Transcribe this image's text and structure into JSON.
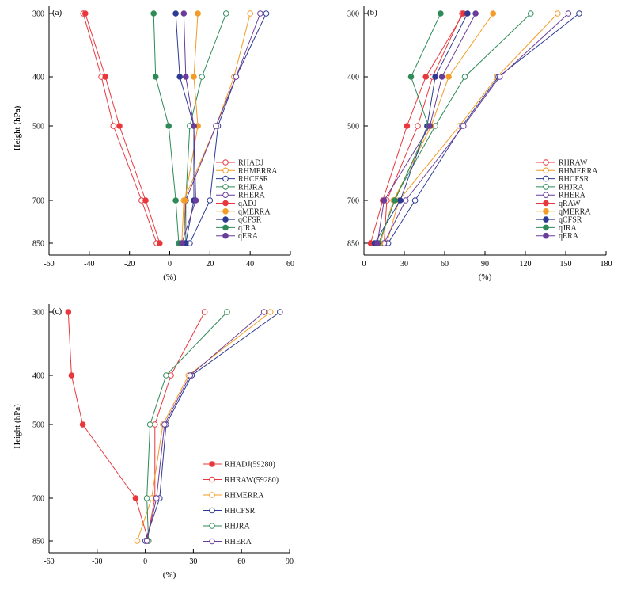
{
  "figure": {
    "y_axis_title": "Height (hPa)",
    "x_axis_title": "(%)"
  },
  "chart_data": [
    {
      "type": "line",
      "panel_label": "(a)",
      "title": "",
      "xlabel": "(%)",
      "ylabel": "Height (hPa)",
      "xlim": [
        -60,
        60
      ],
      "xticks": [
        -60,
        -40,
        -20,
        0,
        20,
        40,
        60
      ],
      "y_levels": [
        300,
        400,
        500,
        700,
        850
      ],
      "legend_position": "right",
      "series": [
        {
          "name": "RHADJ",
          "color": "#e8383d",
          "marker": "open",
          "values": [
            -43,
            -34,
            -28,
            -14,
            -6.5
          ]
        },
        {
          "name": "RHMERRA",
          "color": "#f39c27",
          "marker": "open",
          "values": [
            40,
            32,
            23,
            7,
            6
          ]
        },
        {
          "name": "RHCFSR",
          "color": "#2e3a92",
          "marker": "open",
          "values": [
            48,
            33,
            24,
            20,
            10
          ]
        },
        {
          "name": "RHJRA",
          "color": "#2e8b57",
          "marker": "open",
          "values": [
            28,
            16,
            10,
            8,
            8
          ]
        },
        {
          "name": "RHERA",
          "color": "#6a3d9a",
          "marker": "open",
          "values": [
            45,
            33,
            23,
            8,
            7
          ]
        },
        {
          "name": "qADJ",
          "color": "#e8383d",
          "marker": "filled",
          "values": [
            -42,
            -32,
            -25,
            -12,
            -5
          ]
        },
        {
          "name": "qMERRA",
          "color": "#f39c27",
          "marker": "filled",
          "values": [
            14,
            12,
            14,
            7.5,
            7
          ]
        },
        {
          "name": "qCFSR",
          "color": "#2e3a92",
          "marker": "filled",
          "values": [
            3,
            5,
            12,
            12,
            8
          ]
        },
        {
          "name": "qJRA",
          "color": "#2e8b57",
          "marker": "filled",
          "values": [
            -8,
            -7,
            -0.5,
            3,
            4.5
          ]
        },
        {
          "name": "qERA",
          "color": "#6a3d9a",
          "marker": "filled",
          "values": [
            7,
            8,
            12,
            13,
            6
          ]
        }
      ]
    },
    {
      "type": "line",
      "panel_label": "(b)",
      "title": "",
      "xlabel": "(%)",
      "ylabel": "Height (hPa)",
      "xlim": [
        0,
        180
      ],
      "xticks": [
        0,
        30,
        60,
        90,
        120,
        150,
        180
      ],
      "y_levels": [
        300,
        400,
        500,
        700,
        850
      ],
      "legend_position": "bottom-right",
      "series": [
        {
          "name": "RHRAW",
          "color": "#e8383d",
          "marker": "open",
          "values": [
            73,
            51,
            40,
            17,
            15
          ]
        },
        {
          "name": "RHMERRA",
          "color": "#f39c27",
          "marker": "open",
          "values": [
            144,
            99,
            71,
            26,
            17
          ]
        },
        {
          "name": "RHCFSR",
          "color": "#2e3a92",
          "marker": "open",
          "values": [
            160,
            100,
            73,
            38,
            18
          ]
        },
        {
          "name": "RHJRA",
          "color": "#2e8b57",
          "marker": "open",
          "values": [
            124,
            75,
            53,
            22,
            12
          ]
        },
        {
          "name": "RHERA",
          "color": "#6a3d9a",
          "marker": "open",
          "values": [
            152,
            101,
            74,
            31,
            15
          ]
        },
        {
          "name": "qRAW",
          "color": "#e8383d",
          "marker": "filled",
          "values": [
            74,
            46,
            32,
            14,
            5
          ]
        },
        {
          "name": "qMERRA",
          "color": "#f39c27",
          "marker": "filled",
          "values": [
            96,
            63,
            50,
            22,
            12
          ]
        },
        {
          "name": "qCFSR",
          "color": "#2e3a92",
          "marker": "filled",
          "values": [
            77,
            53,
            47,
            27,
            8
          ]
        },
        {
          "name": "qJRA",
          "color": "#2e8b57",
          "marker": "filled",
          "values": [
            57,
            35,
            48,
            23,
            11
          ]
        },
        {
          "name": "qERA",
          "color": "#6a3d9a",
          "marker": "filled",
          "values": [
            83,
            58,
            49,
            15,
            10
          ]
        }
      ]
    },
    {
      "type": "line",
      "panel_label": "(c)",
      "title": "",
      "xlabel": "(%)",
      "ylabel": "Height (hPa)",
      "xlim": [
        -60,
        90
      ],
      "xticks": [
        -60,
        -30,
        0,
        30,
        60,
        90
      ],
      "y_levels": [
        300,
        400,
        500,
        700,
        850
      ],
      "legend_position": "bottom-right",
      "series": [
        {
          "name": "RHADJ(59280)",
          "color": "#e8383d",
          "marker": "filled",
          "values": [
            -48,
            -46,
            -39,
            -6,
            2
          ]
        },
        {
          "name": "RHRAW(59280)",
          "color": "#e8383d",
          "marker": "open",
          "values": [
            37,
            16,
            6,
            6,
            1
          ]
        },
        {
          "name": "RHMERRA",
          "color": "#f39c27",
          "marker": "open",
          "values": [
            78,
            27,
            11,
            4,
            -5
          ]
        },
        {
          "name": "RHCFSR",
          "color": "#2e3a92",
          "marker": "open",
          "values": [
            84,
            29,
            13,
            9,
            0
          ]
        },
        {
          "name": "RHJRA",
          "color": "#2e8b57",
          "marker": "open",
          "values": [
            51,
            13,
            3,
            1,
            2
          ]
        },
        {
          "name": "RHERA",
          "color": "#6a3d9a",
          "marker": "open",
          "values": [
            74,
            28,
            12,
            7,
            1
          ]
        }
      ]
    }
  ]
}
